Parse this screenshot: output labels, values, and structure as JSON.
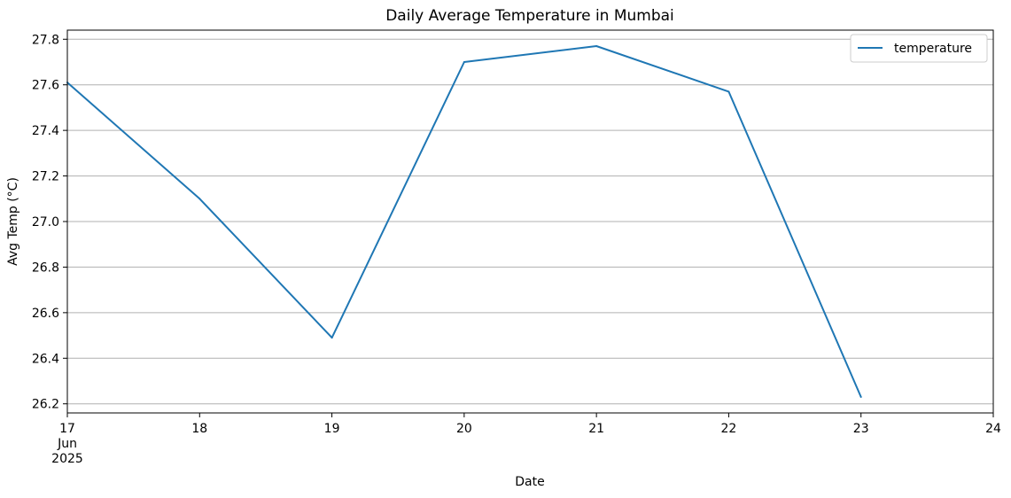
{
  "chart_data": {
    "type": "line",
    "title": "Daily Average Temperature in Mumbai",
    "xlabel": "Date",
    "ylabel": "Avg Temp (°C)",
    "x": [
      "2025-06-17",
      "2025-06-18",
      "2025-06-19",
      "2025-06-20",
      "2025-06-21",
      "2025-06-22",
      "2025-06-23"
    ],
    "x_tick_labels": [
      "17",
      "18",
      "19",
      "20",
      "21",
      "22",
      "23",
      "24"
    ],
    "x_tick_sublabels": [
      "Jun",
      "2025"
    ],
    "xlim": [
      "2025-06-17",
      "2025-06-24"
    ],
    "y_ticks": [
      "26.2",
      "26.4",
      "26.6",
      "26.8",
      "27.0",
      "27.2",
      "27.4",
      "27.6",
      "27.8"
    ],
    "ylim": [
      26.16,
      27.84
    ],
    "series": [
      {
        "name": "temperature",
        "values": [
          27.61,
          27.1,
          26.49,
          27.7,
          27.77,
          27.57,
          26.23
        ],
        "color": "#1f77b4"
      }
    ],
    "grid": "horizontal",
    "legend": "top-right"
  }
}
